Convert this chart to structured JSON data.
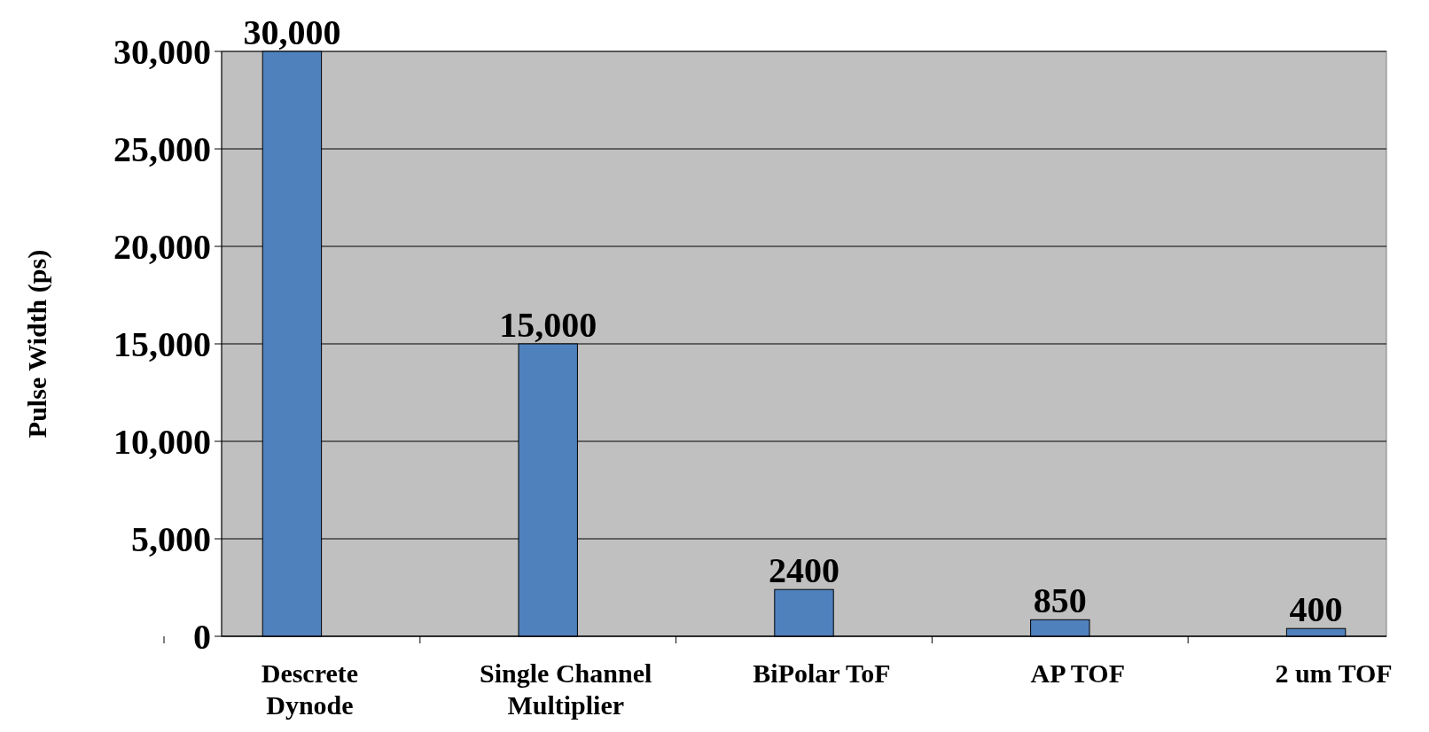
{
  "chart_data": {
    "type": "bar",
    "ylabel": "Pulse Width (ps)",
    "categories": [
      "Descrete Dynode",
      "Single Channel Multiplier",
      "BiPolar ToF",
      "AP TOF",
      "2 um TOF"
    ],
    "values": [
      30000,
      15000,
      2400,
      850,
      400
    ],
    "value_labels": [
      "30,000",
      "15,000",
      "2400",
      "850",
      "400"
    ],
    "color": "#4f81bd",
    "ylim": [
      0,
      30000
    ],
    "yticks": [
      {
        "value": 0,
        "label": "0"
      },
      {
        "value": 5000,
        "label": "5,000"
      },
      {
        "value": 10000,
        "label": "10,000"
      },
      {
        "value": 15000,
        "label": "15,000"
      },
      {
        "value": 20000,
        "label": "20,000"
      },
      {
        "value": 25000,
        "label": "25,000"
      },
      {
        "value": 30000,
        "label": "30,000"
      }
    ],
    "grid": "y"
  }
}
